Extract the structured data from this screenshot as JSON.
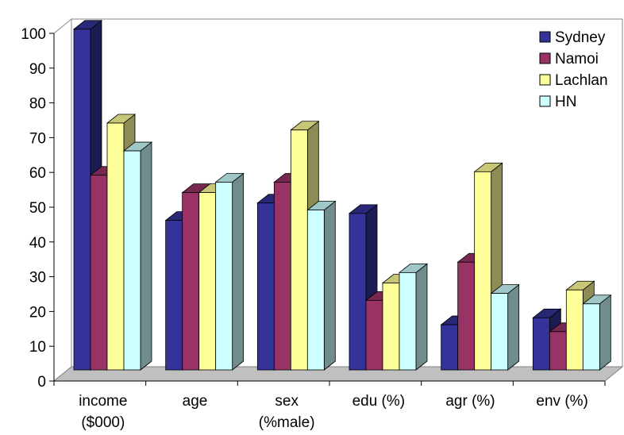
{
  "chart_data": {
    "type": "bar",
    "title": "",
    "xlabel": "",
    "ylabel": "",
    "ylim": [
      0,
      100
    ],
    "y_ticks": [
      "0",
      "10",
      "20",
      "30",
      "40",
      "50",
      "60",
      "70",
      "80",
      "90",
      "100"
    ],
    "categories": [
      [
        "income",
        "($000)"
      ],
      [
        "age"
      ],
      [
        "sex",
        "(%male)"
      ],
      [
        "edu (%)"
      ],
      [
        "agr (%)"
      ],
      [
        "env (%)"
      ]
    ],
    "series": [
      {
        "name": "Sydney",
        "color": "#333399",
        "values": [
          98,
          43,
          48,
          45,
          13,
          15
        ]
      },
      {
        "name": "Namoi",
        "color": "#993366",
        "values": [
          56,
          51,
          54,
          20,
          31,
          11
        ]
      },
      {
        "name": "Lachlan",
        "color": "#FFFF99",
        "values": [
          71,
          51,
          69,
          25,
          57,
          23
        ]
      },
      {
        "name": "HN",
        "color": "#CCFFFF",
        "values": [
          63,
          54,
          46,
          28,
          22,
          19
        ]
      }
    ],
    "legend_position": "top-right",
    "gridlines": false,
    "style": "3d-clustered-column"
  }
}
